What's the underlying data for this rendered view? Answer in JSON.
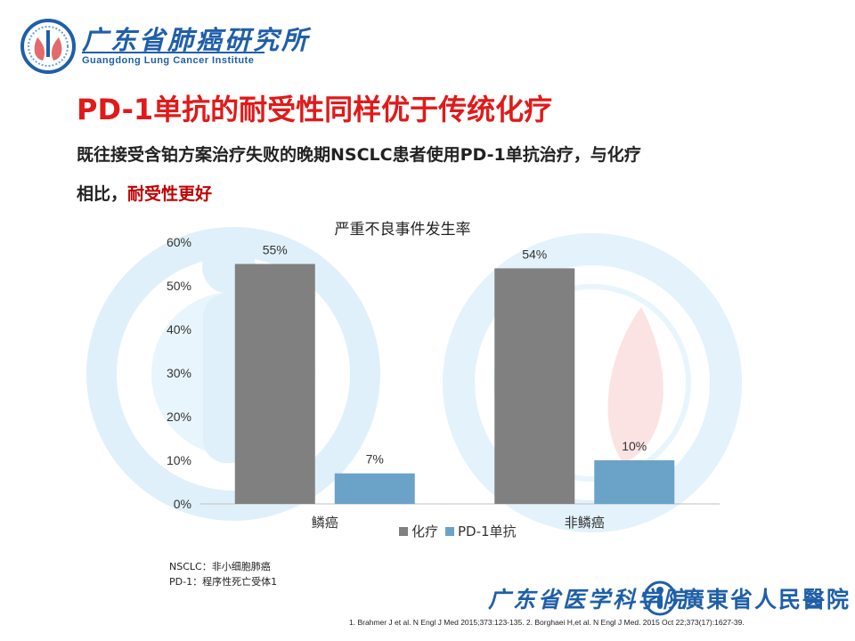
{
  "header": {
    "logo_cn": "广东省肺癌研究所",
    "logo_en": "Guangdong Lung Cancer Institute"
  },
  "title": "PD-1单抗的耐受性同样优于传统化疗",
  "subtitle": {
    "line1": "既往接受含铂方案治疗失败的晚期NSCLC患者使用PD-1单抗治疗，与化疗",
    "line2_prefix": "相比，",
    "line2_highlight": "耐受性更好"
  },
  "chart_data": {
    "type": "bar",
    "title": "严重不良事件发生率",
    "categories": [
      "鳞癌",
      "非鳞癌"
    ],
    "series": [
      {
        "name": "化疗",
        "values": [
          55,
          54
        ],
        "labels": [
          "55%",
          "54%"
        ],
        "color": "#808080"
      },
      {
        "name": "PD-1单抗",
        "values": [
          7,
          10
        ],
        "labels": [
          "7%",
          "10%"
        ],
        "color": "#6ba3c8"
      }
    ],
    "yticks": [
      "0%",
      "10%",
      "20%",
      "30%",
      "40%",
      "50%",
      "60%"
    ],
    "ylim": [
      0,
      60
    ],
    "legend": "bottom-center",
    "grid": false
  },
  "footnotes": {
    "abbr1": "NSCLC：非小细胞肺癌",
    "abbr2": "PD-1：程序性死亡受体1",
    "refs": "1. Brahmer J et al. N Engl J Med 2015;373:123-135. 2. Borghaei H,et al. N Engl J Med. 2015 Oct 22;373(17):1627-39."
  },
  "footer": {
    "hospital1": "广东省医学科学院",
    "hospital2": "廣東省人民醫院"
  },
  "colors": {
    "brand_blue": "#1f5fa8",
    "title_red": "#e01a1a",
    "highlight_red": "#c00000",
    "watermark": "#dff0fa"
  }
}
